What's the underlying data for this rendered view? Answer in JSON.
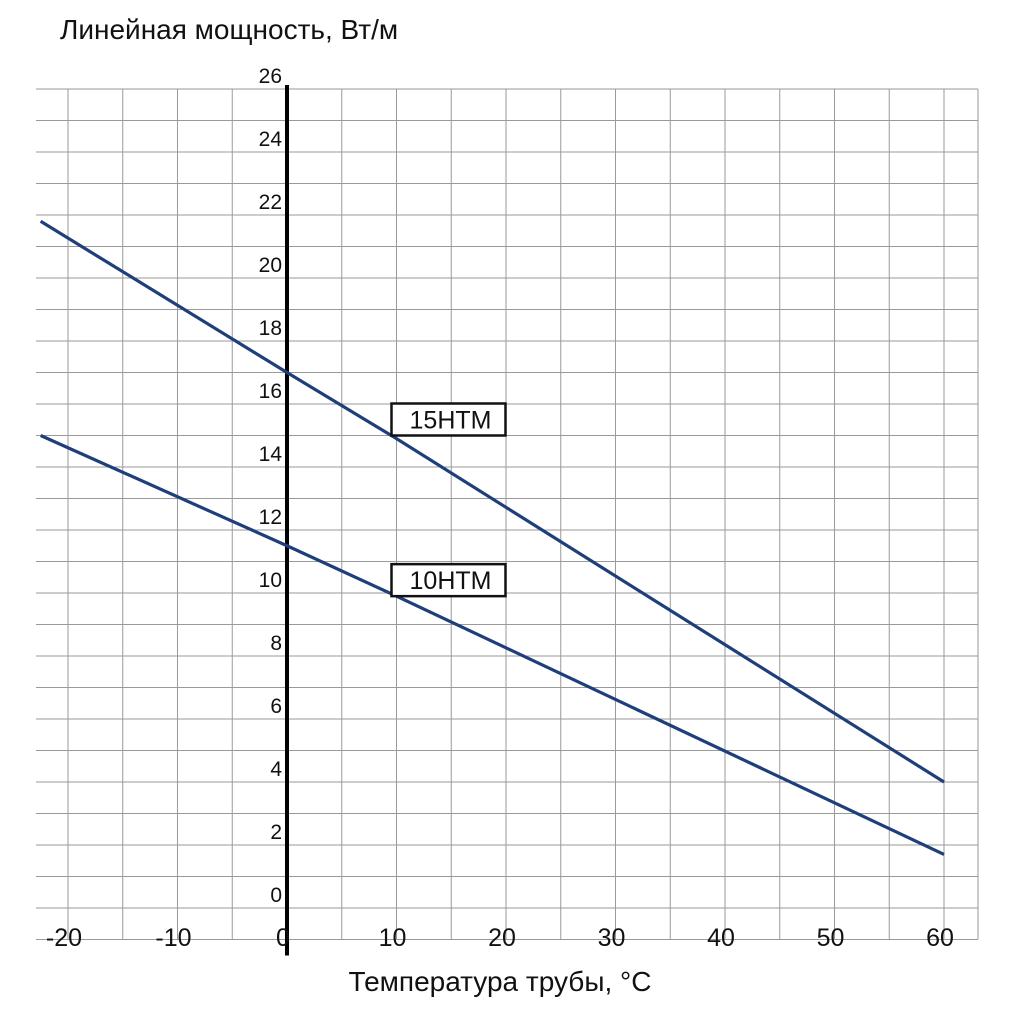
{
  "chart_data": {
    "type": "line",
    "title": "",
    "ylabel": "Линейная мощность, Вт/м",
    "xlabel": "Температура трубы, °C",
    "xlim": [
      -22.5,
      63
    ],
    "ylim": [
      -1,
      26
    ],
    "x_ticks": [
      -20,
      -10,
      0,
      10,
      20,
      30,
      40,
      50,
      60
    ],
    "x_tick_labels": [
      "-20",
      "-10",
      "0",
      "10",
      "20",
      "30",
      "40",
      "50",
      "60"
    ],
    "y_ticks": [
      0,
      2,
      4,
      6,
      8,
      10,
      12,
      14,
      16,
      18,
      20,
      22,
      24,
      26
    ],
    "y_tick_labels": [
      "0",
      "2",
      "4",
      "6",
      "8",
      "10",
      "12",
      "14",
      "16",
      "18",
      "20",
      "22",
      "24",
      "26"
    ],
    "grid": true,
    "series": [
      {
        "name": "15HTM",
        "x": [
          -22.5,
          0,
          10,
          60
        ],
        "y": [
          21.8,
          17.0,
          14.9,
          4.0
        ],
        "label_at": [
          10,
          15
        ]
      },
      {
        "name": "10HTM",
        "x": [
          -22.5,
          0,
          10,
          60
        ],
        "y": [
          15.0,
          11.5,
          9.9,
          1.7
        ],
        "label_at": [
          10,
          9.9
        ]
      }
    ],
    "colors": {
      "line": "#1f3f7a",
      "grid": "#9a9a9a",
      "axis": "#000000"
    }
  }
}
